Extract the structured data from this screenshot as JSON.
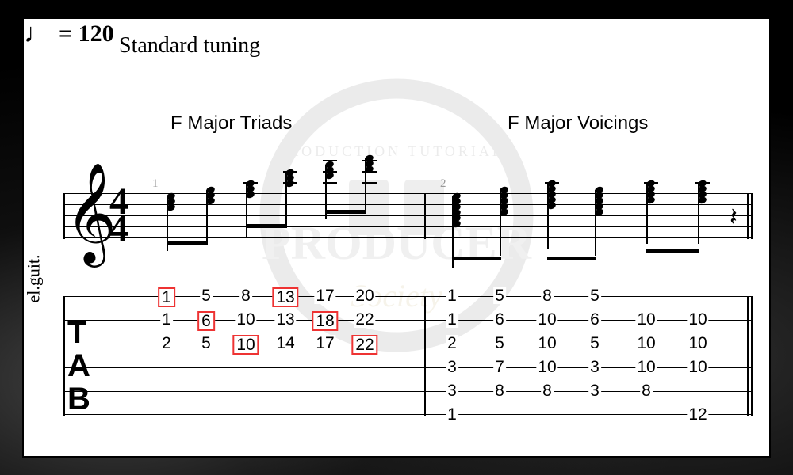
{
  "header": {
    "tuning": "Standard tuning",
    "tempo_value": "= 120",
    "time_sig_num": "4",
    "time_sig_den": "4"
  },
  "labels": {
    "triads": "F Major Triads",
    "voicings": "F Major Voicings",
    "instrument": "el.guit."
  },
  "bar_numbers": {
    "b1": "1",
    "b2": "2"
  },
  "colors": {
    "highlight_border": "#e33",
    "staff_line": "#000",
    "bar_number": "#999",
    "background": "#fff"
  },
  "layout": {
    "string_spacing": 30,
    "triad_x": [
      130,
      180,
      230,
      280,
      330,
      380
    ],
    "voicing_x": [
      490,
      550,
      610,
      670,
      735,
      800
    ]
  },
  "tab": {
    "strings": 6,
    "triads": [
      {
        "frets": [
          1,
          1,
          2,
          null,
          null,
          null
        ],
        "highlight": [
          0
        ]
      },
      {
        "frets": [
          5,
          6,
          5,
          null,
          null,
          null
        ],
        "highlight": [
          1
        ]
      },
      {
        "frets": [
          8,
          10,
          10,
          null,
          null,
          null
        ],
        "highlight": [
          2
        ]
      },
      {
        "frets": [
          13,
          13,
          14,
          null,
          null,
          null
        ],
        "highlight": [
          0
        ]
      },
      {
        "frets": [
          17,
          18,
          17,
          null,
          null,
          null
        ],
        "highlight": [
          1
        ]
      },
      {
        "frets": [
          20,
          22,
          22,
          null,
          null,
          null
        ],
        "highlight": [
          2
        ]
      }
    ],
    "voicings": [
      {
        "frets": [
          1,
          1,
          2,
          3,
          3,
          1
        ]
      },
      {
        "frets": [
          5,
          6,
          5,
          7,
          8,
          null
        ]
      },
      {
        "frets": [
          8,
          10,
          10,
          10,
          8,
          null
        ]
      },
      {
        "frets": [
          5,
          6,
          5,
          3,
          3,
          null
        ]
      },
      {
        "frets": [
          null,
          10,
          10,
          10,
          8,
          null
        ]
      },
      {
        "frets": [
          null,
          10,
          10,
          10,
          null,
          12
        ]
      }
    ]
  },
  "notation": {
    "triads_top_offsets": [
      30,
      22,
      14,
      0,
      -10,
      -18
    ],
    "voicings_top_offsets": [
      30,
      22,
      14,
      22,
      14,
      14
    ],
    "voicings_note_counts": [
      6,
      5,
      5,
      5,
      4,
      4
    ]
  }
}
